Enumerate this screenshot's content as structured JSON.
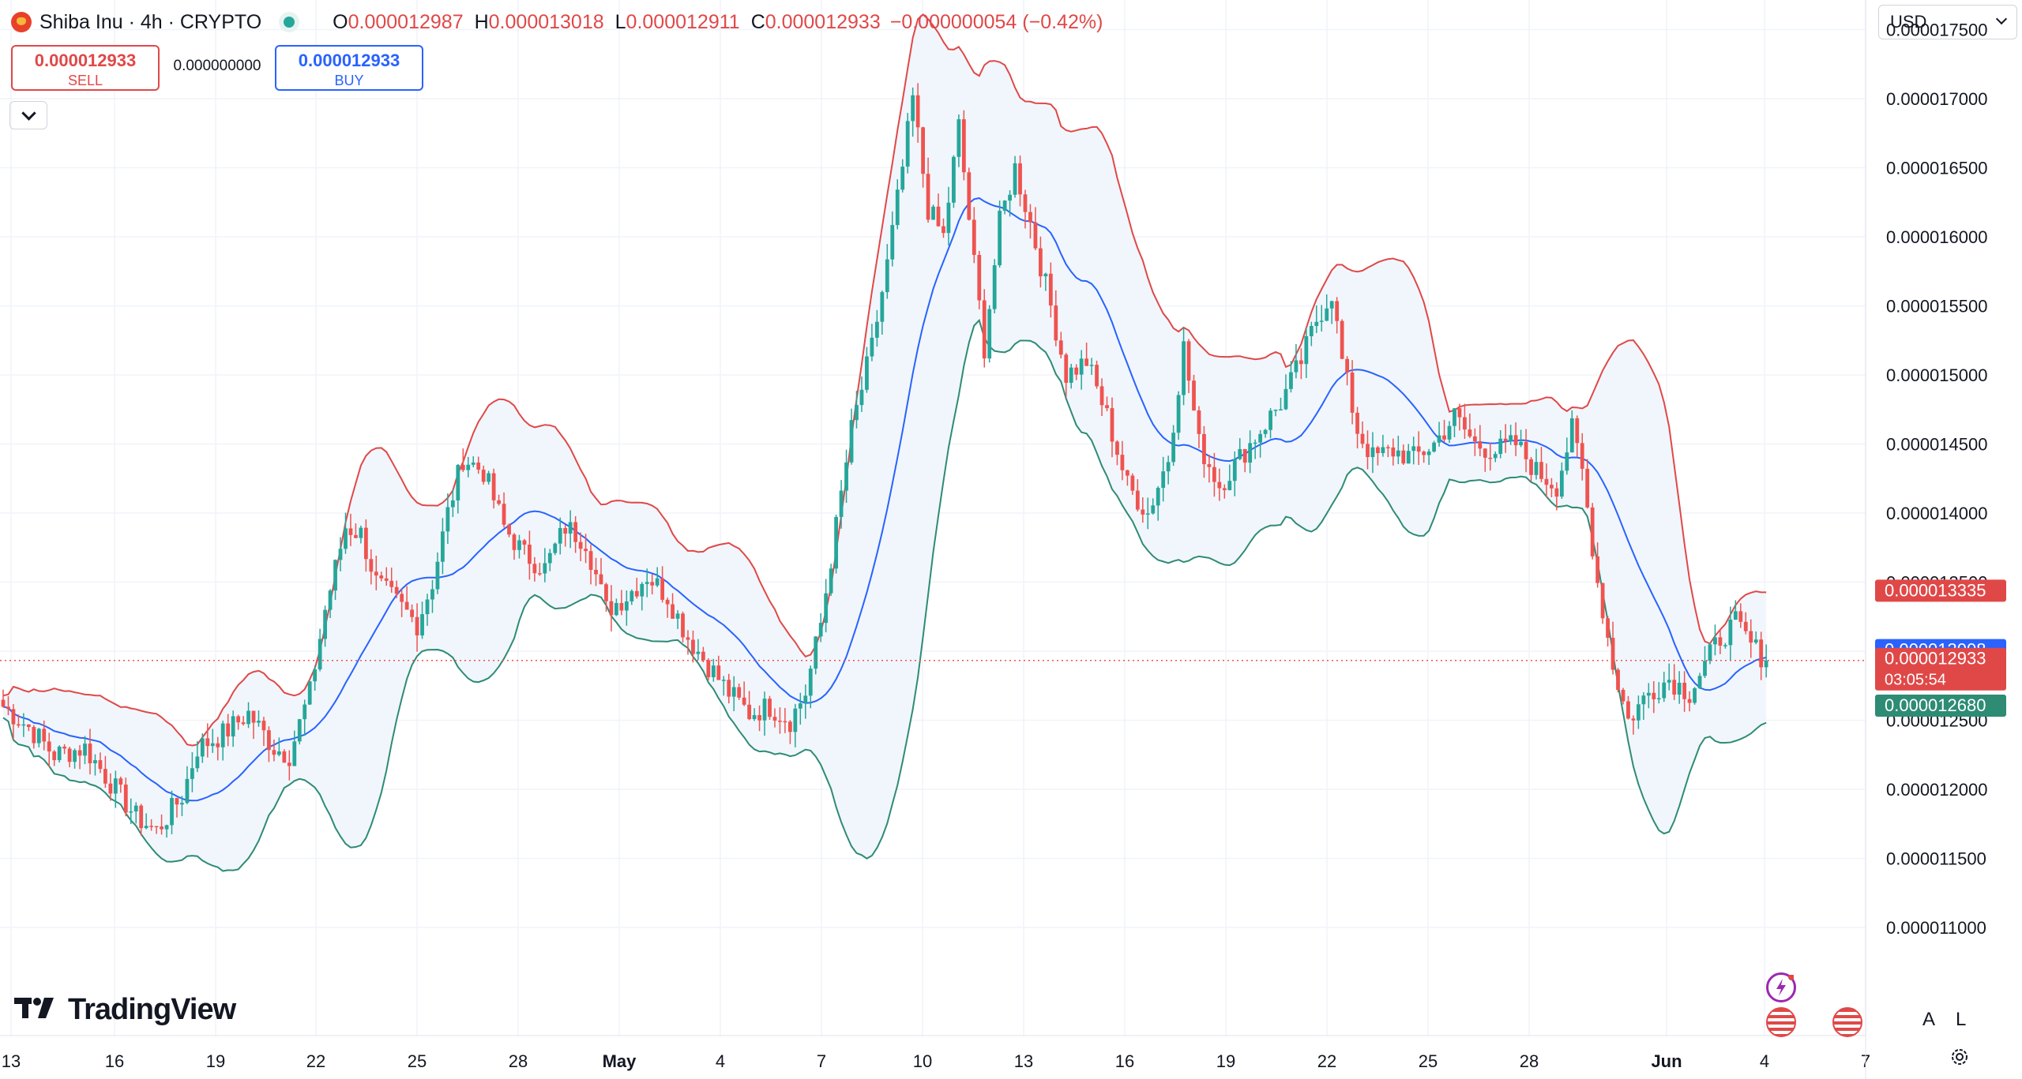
{
  "legend": {
    "symbol": "Shiba Inu · 4h · CRYPTO",
    "o_label": "O",
    "o_value": "0.000012987",
    "h_label": "H",
    "h_value": "0.000013018",
    "l_label": "L",
    "l_value": "0.000012911",
    "c_label": "C",
    "c_value": "0.000012933",
    "change": "−0.000000054 (−0.42%)"
  },
  "trade": {
    "sell_price": "0.000012933",
    "sell_label": "SELL",
    "spread": "0.000000000",
    "buy_price": "0.000012933",
    "buy_label": "BUY"
  },
  "currency": "USD",
  "brand": "TradingView",
  "axis_buttons": {
    "auto": "A",
    "log": "L"
  },
  "colors": {
    "up": "#26a69a",
    "down": "#ef5350",
    "upper_band": "#e04848",
    "basis": "#2962ff",
    "lower_band": "#2e8b74",
    "fill": "#eef5fc"
  },
  "chart_data": {
    "type": "candlestick",
    "interval": "4h",
    "y_ticks": [
      "0.000011000",
      "0.000011500",
      "0.000012000",
      "0.000012500",
      "0.000013000",
      "0.000013500",
      "0.000014000",
      "0.000014500",
      "0.000015000",
      "0.000015500",
      "0.000016000",
      "0.000016500",
      "0.000017000",
      "0.000017500"
    ],
    "x_ticks": [
      "13",
      "16",
      "19",
      "22",
      "25",
      "28",
      "May",
      "4",
      "7",
      "10",
      "13",
      "16",
      "19",
      "22",
      "25",
      "28",
      "Jun",
      "4",
      "7"
    ],
    "price_labels": [
      {
        "value": "0.000013335",
        "kind": "upper"
      },
      {
        "value": "0.000013008",
        "kind": "basis"
      },
      {
        "value": "0.000012933",
        "kind": "last",
        "countdown": "03:05:54"
      },
      {
        "value": "0.000012680",
        "kind": "lower"
      }
    ],
    "path": [
      [
        0,
        12.6
      ],
      [
        5,
        12.45
      ],
      [
        10,
        12.25
      ],
      [
        16,
        12.3
      ],
      [
        20,
        12.1
      ],
      [
        26,
        11.8
      ],
      [
        30,
        11.7
      ],
      [
        35,
        11.95
      ],
      [
        38,
        12.3
      ],
      [
        43,
        12.4
      ],
      [
        48,
        12.55
      ],
      [
        53,
        12.3
      ],
      [
        56,
        12.25
      ],
      [
        60,
        12.7
      ],
      [
        63,
        13.3
      ],
      [
        67,
        13.9
      ],
      [
        70,
        13.85
      ],
      [
        73,
        13.5
      ],
      [
        77,
        13.35
      ],
      [
        81,
        13.2
      ],
      [
        84,
        13.5
      ],
      [
        87,
        14.0
      ],
      [
        90,
        14.4
      ],
      [
        94,
        14.3
      ],
      [
        98,
        13.9
      ],
      [
        102,
        13.7
      ],
      [
        106,
        13.6
      ],
      [
        110,
        13.9
      ],
      [
        114,
        13.8
      ],
      [
        118,
        13.3
      ],
      [
        122,
        13.4
      ],
      [
        126,
        13.55
      ],
      [
        130,
        13.4
      ],
      [
        134,
        13.1
      ],
      [
        138,
        12.9
      ],
      [
        142,
        12.7
      ],
      [
        146,
        12.55
      ],
      [
        150,
        12.6
      ],
      [
        154,
        12.5
      ],
      [
        157,
        12.7
      ],
      [
        160,
        13.2
      ],
      [
        163,
        13.9
      ],
      [
        166,
        14.6
      ],
      [
        170,
        15.2
      ],
      [
        173,
        15.8
      ],
      [
        176,
        16.5
      ],
      [
        178,
        17.0
      ],
      [
        181,
        16.2
      ],
      [
        184,
        16.0
      ],
      [
        187,
        16.8
      ],
      [
        190,
        15.8
      ],
      [
        192,
        15.2
      ],
      [
        195,
        16.1
      ],
      [
        198,
        16.5
      ],
      [
        201,
        16.1
      ],
      [
        205,
        15.5
      ],
      [
        208,
        15.0
      ],
      [
        212,
        15.1
      ],
      [
        216,
        14.7
      ],
      [
        220,
        14.2
      ],
      [
        224,
        14.0
      ],
      [
        228,
        14.4
      ],
      [
        231,
        15.2
      ],
      [
        234,
        14.5
      ],
      [
        238,
        14.2
      ],
      [
        242,
        14.4
      ],
      [
        246,
        14.6
      ],
      [
        250,
        14.8
      ],
      [
        254,
        15.1
      ],
      [
        257,
        15.4
      ],
      [
        260,
        15.6
      ],
      [
        262,
        15.1
      ],
      [
        265,
        14.6
      ],
      [
        268,
        14.4
      ],
      [
        272,
        14.45
      ],
      [
        276,
        14.4
      ],
      [
        280,
        14.5
      ],
      [
        284,
        14.7
      ],
      [
        288,
        14.5
      ],
      [
        292,
        14.45
      ],
      [
        296,
        14.5
      ],
      [
        300,
        14.3
      ],
      [
        304,
        14.2
      ],
      [
        307,
        14.6
      ],
      [
        309,
        14.3
      ],
      [
        312,
        13.5
      ],
      [
        315,
        12.9
      ],
      [
        318,
        12.5
      ],
      [
        322,
        12.7
      ],
      [
        326,
        12.8
      ],
      [
        330,
        12.7
      ],
      [
        333,
        12.9
      ],
      [
        336,
        13.1
      ],
      [
        339,
        13.2
      ],
      [
        342,
        13.05
      ],
      [
        345,
        12.93
      ]
    ]
  }
}
